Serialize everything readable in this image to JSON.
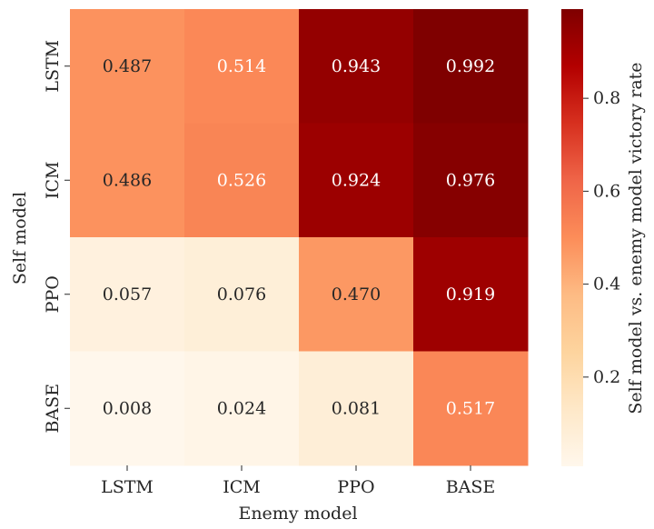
{
  "chart_data": {
    "type": "heatmap",
    "title": "",
    "xlabel": "Enemy model",
    "ylabel": "Self model",
    "x_categories": [
      "LSTM",
      "ICM",
      "PPO",
      "BASE"
    ],
    "y_categories": [
      "LSTM",
      "ICM",
      "PPO",
      "BASE"
    ],
    "values": [
      [
        0.487,
        0.514,
        0.943,
        0.992
      ],
      [
        0.486,
        0.526,
        0.924,
        0.976
      ],
      [
        0.057,
        0.076,
        0.47,
        0.919
      ],
      [
        0.008,
        0.024,
        0.081,
        0.517
      ]
    ],
    "value_labels": [
      [
        "0.487",
        "0.514",
        "0.943",
        "0.992"
      ],
      [
        "0.486",
        "0.526",
        "0.924",
        "0.976"
      ],
      [
        "0.057",
        "0.076",
        "0.470",
        "0.919"
      ],
      [
        "0.008",
        "0.024",
        "0.081",
        "0.517"
      ]
    ],
    "colormap": "OrRd",
    "vmin": 0.008,
    "vmax": 0.992,
    "colorbar": {
      "label": "Self model vs. enemy model victory rate",
      "ticks": [
        0.2,
        0.4,
        0.6,
        0.8
      ],
      "tick_labels": [
        "0.2",
        "0.4",
        "0.6",
        "0.8"
      ]
    },
    "colors": {
      "stops": [
        "#fff7ec",
        "#fee8c8",
        "#fdd49e",
        "#fdbb84",
        "#fc8d59",
        "#ef6548",
        "#d7301f",
        "#b30000",
        "#7f0000"
      ],
      "text_dark": "#262626",
      "text_light": "#ffffff"
    }
  }
}
